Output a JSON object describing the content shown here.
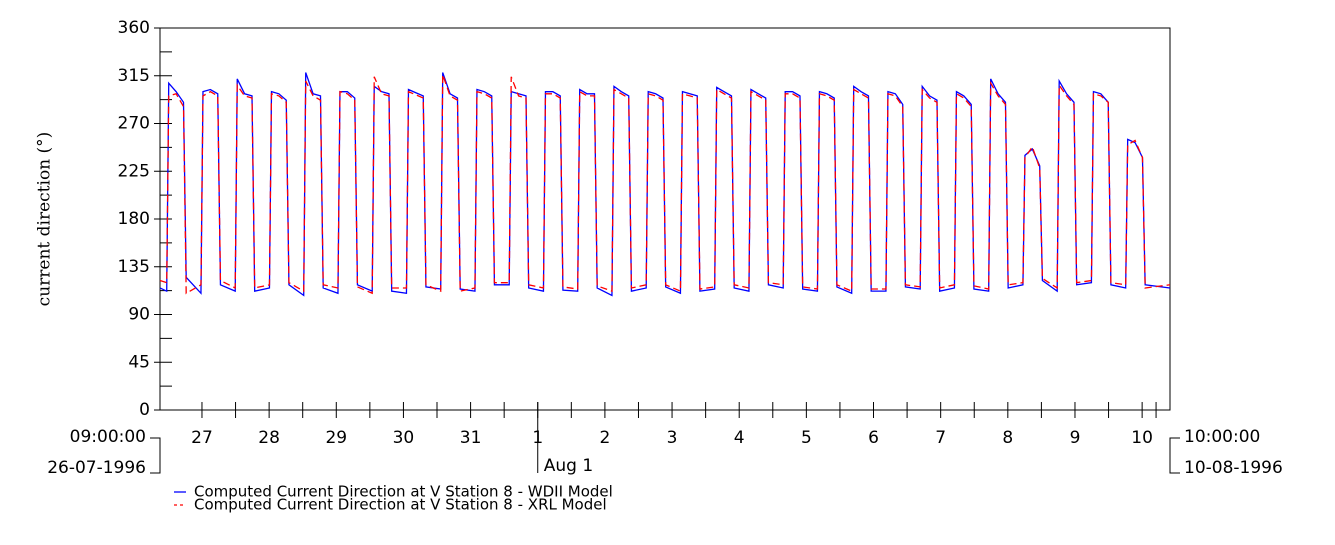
{
  "chart_data": {
    "type": "line",
    "ylabel": "current direction (°)",
    "xlim": [
      0,
      15.04
    ],
    "ylim": [
      0,
      360
    ],
    "yticks": [
      0,
      45,
      90,
      135,
      180,
      225,
      270,
      315,
      360
    ],
    "xticks": [
      {
        "value": 0.625,
        "label": "27"
      },
      {
        "value": 1.625,
        "label": "28"
      },
      {
        "value": 2.625,
        "label": "29"
      },
      {
        "value": 3.625,
        "label": "30"
      },
      {
        "value": 4.625,
        "label": "31"
      },
      {
        "value": 5.625,
        "label": "1"
      },
      {
        "value": 6.625,
        "label": "2"
      },
      {
        "value": 7.625,
        "label": "3"
      },
      {
        "value": 8.625,
        "label": "4"
      },
      {
        "value": 9.625,
        "label": "5"
      },
      {
        "value": 10.625,
        "label": "6"
      },
      {
        "value": 11.625,
        "label": "7"
      },
      {
        "value": 12.625,
        "label": "8"
      },
      {
        "value": 13.625,
        "label": "9"
      },
      {
        "value": 14.625,
        "label": "10"
      }
    ],
    "x_start_label": [
      "09:00:00",
      "26-07-1996"
    ],
    "x_end_label": [
      "10:00:00",
      "10-08-1996"
    ],
    "x_annotation": {
      "value": 5.625,
      "label": "Aug 1"
    },
    "x": [
      0,
      0.1,
      0.13,
      0.24,
      0.35,
      0.39,
      0.61,
      0.64,
      0.75,
      0.86,
      0.9,
      1.12,
      1.15,
      1.26,
      1.37,
      1.41,
      1.63,
      1.66,
      1.77,
      1.88,
      1.92,
      2.14,
      2.17,
      2.28,
      2.39,
      2.43,
      2.65,
      2.68,
      2.79,
      2.9,
      2.94,
      3.16,
      3.19,
      3.3,
      3.41,
      3.45,
      3.67,
      3.7,
      3.81,
      3.92,
      3.96,
      4.18,
      4.21,
      4.32,
      4.43,
      4.47,
      4.69,
      4.72,
      4.83,
      4.94,
      4.98,
      5.2,
      5.23,
      5.34,
      5.45,
      5.49,
      5.71,
      5.74,
      5.85,
      5.96,
      6.0,
      6.22,
      6.25,
      6.36,
      6.47,
      6.51,
      6.73,
      6.76,
      6.87,
      6.98,
      7.02,
      7.24,
      7.27,
      7.38,
      7.49,
      7.53,
      7.75,
      7.78,
      7.89,
      8.0,
      8.04,
      8.26,
      8.29,
      8.4,
      8.51,
      8.55,
      8.77,
      8.8,
      8.91,
      9.02,
      9.06,
      9.28,
      9.31,
      9.42,
      9.53,
      9.57,
      9.79,
      9.82,
      9.93,
      10.04,
      10.08,
      10.3,
      10.33,
      10.44,
      10.55,
      10.59,
      10.81,
      10.84,
      10.95,
      11.06,
      11.1,
      11.32,
      11.35,
      11.46,
      11.57,
      11.61,
      11.83,
      11.86,
      11.97,
      12.08,
      12.12,
      12.34,
      12.37,
      12.48,
      12.59,
      12.63,
      12.85,
      12.88,
      12.99,
      13.1,
      13.14,
      13.36,
      13.39,
      13.5,
      13.61,
      13.65,
      13.87,
      13.9,
      14.01,
      14.12,
      14.16,
      14.38,
      14.41,
      14.52,
      14.63,
      14.67,
      15.04
    ],
    "series": [
      {
        "name": "Computed Current Direction at V Station 8 - WDII Model",
        "color": "#0000ff",
        "dash": "none",
        "values": [
          115,
          112,
          308,
          300,
          290,
          125,
          110,
          300,
          302,
          298,
          118,
          112,
          312,
          298,
          296,
          112,
          115,
          300,
          298,
          292,
          118,
          108,
          318,
          298,
          296,
          115,
          110,
          300,
          300,
          294,
          118,
          112,
          305,
          300,
          298,
          112,
          110,
          302,
          299,
          296,
          116,
          114,
          318,
          298,
          294,
          114,
          112,
          302,
          300,
          296,
          118,
          118,
          300,
          298,
          296,
          115,
          112,
          300,
          300,
          296,
          113,
          112,
          302,
          298,
          298,
          115,
          108,
          305,
          300,
          296,
          112,
          115,
          300,
          298,
          294,
          116,
          110,
          300,
          298,
          296,
          112,
          114,
          304,
          300,
          296,
          115,
          112,
          302,
          298,
          294,
          118,
          115,
          300,
          300,
          296,
          114,
          112,
          300,
          298,
          294,
          116,
          110,
          305,
          300,
          296,
          112,
          112,
          300,
          298,
          288,
          116,
          114,
          305,
          296,
          292,
          112,
          115,
          300,
          296,
          288,
          114,
          112,
          312,
          298,
          290,
          115,
          118,
          240,
          246,
          230,
          122,
          112,
          310,
          298,
          290,
          118,
          120,
          300,
          298,
          290,
          118,
          115,
          255,
          252,
          238,
          118,
          115
        ]
      },
      {
        "name": "Computed Current Direction at V Station 8 - XRL Model",
        "color": "#ff0000",
        "dash": "7 4",
        "values": [
          122,
          120,
          296,
          298,
          286,
          110,
          118,
          296,
          300,
          296,
          122,
          115,
          306,
          296,
          294,
          115,
          118,
          298,
          296,
          290,
          120,
          112,
          310,
          296,
          292,
          118,
          115,
          300,
          298,
          292,
          116,
          110,
          314,
          298,
          296,
          115,
          115,
          300,
          297,
          294,
          118,
          112,
          316,
          296,
          292,
          112,
          115,
          300,
          298,
          294,
          120,
          120,
          314,
          296,
          294,
          118,
          115,
          298,
          298,
          294,
          116,
          114,
          300,
          296,
          296,
          117,
          112,
          302,
          298,
          294,
          115,
          118,
          298,
          296,
          292,
          118,
          112,
          298,
          296,
          294,
          114,
          116,
          302,
          298,
          294,
          118,
          115,
          300,
          296,
          292,
          120,
          118,
          298,
          298,
          294,
          116,
          114,
          298,
          296,
          292,
          118,
          112,
          302,
          298,
          294,
          114,
          114,
          298,
          296,
          286,
          118,
          116,
          302,
          294,
          290,
          115,
          118,
          298,
          294,
          286,
          117,
          114,
          308,
          296,
          288,
          118,
          120,
          238,
          248,
          228,
          124,
          115,
          306,
          296,
          288,
          120,
          122,
          298,
          296,
          290,
          120,
          118,
          250,
          254,
          238,
          115,
          118
        ]
      }
    ]
  }
}
